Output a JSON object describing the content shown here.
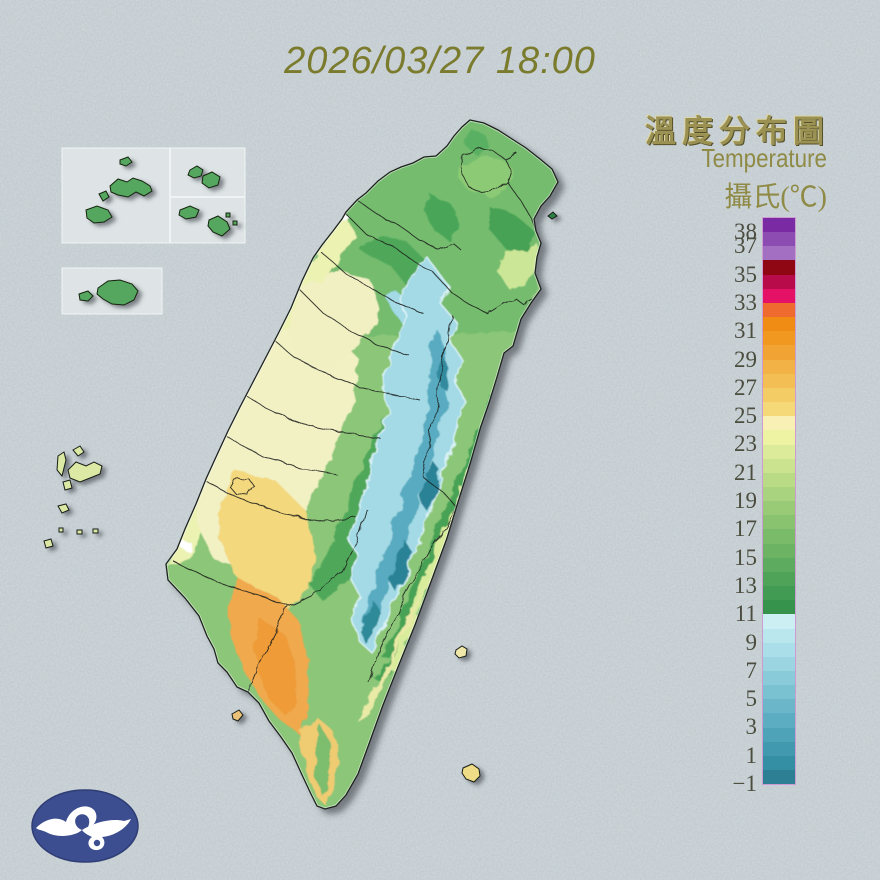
{
  "title": {
    "datetime": "2026/03/27 18:00"
  },
  "legend": {
    "title_zh": "溫度分布圖",
    "title_en": "Temperature",
    "unit_label": "攝氏(℃)",
    "ticks": [
      {
        "label": "38",
        "pos": 1
      },
      {
        "label": "37",
        "pos": 2
      },
      {
        "label": "35",
        "pos": 4
      },
      {
        "label": "33",
        "pos": 6
      },
      {
        "label": "31",
        "pos": 8
      },
      {
        "label": "29",
        "pos": 10
      },
      {
        "label": "27",
        "pos": 12
      },
      {
        "label": "25",
        "pos": 14
      },
      {
        "label": "23",
        "pos": 16
      },
      {
        "label": "21",
        "pos": 18
      },
      {
        "label": "19",
        "pos": 20
      },
      {
        "label": "17",
        "pos": 22
      },
      {
        "label": "15",
        "pos": 24
      },
      {
        "label": "13",
        "pos": 26
      },
      {
        "label": "11",
        "pos": 28
      },
      {
        "label": "9",
        "pos": 30
      },
      {
        "label": "7",
        "pos": 32
      },
      {
        "label": "5",
        "pos": 34
      },
      {
        "label": "3",
        "pos": 36
      },
      {
        "label": "1",
        "pos": 38
      },
      {
        "label": "−1",
        "pos": 40
      }
    ]
  },
  "map_semantics": {
    "main_island": "taiwan",
    "insets": [
      "kinmen-islands",
      "matsu-north-islands",
      "matsu-south-islands",
      "offshore-islet-group"
    ],
    "offshore_islands": [
      "penghu-archipelago",
      "guishan-island",
      "green-island",
      "orchid-island",
      "xiaoliuqiu"
    ]
  },
  "logo": {
    "name": "central-weather-administration-logo",
    "color": "#3c4d90"
  },
  "chart_data": {
    "type": "heatmap",
    "title_zh": "溫度分布圖",
    "title_en": "Temperature",
    "unit": "攝氏(℃)",
    "datetime": "2026/03/27 18:00",
    "legend_position": "right",
    "scale": {
      "top_value": 39,
      "bottom_value": -1,
      "step": 1,
      "tick_values": [
        38,
        37,
        35,
        33,
        31,
        29,
        27,
        25,
        23,
        21,
        19,
        17,
        15,
        13,
        11,
        9,
        7,
        5,
        3,
        1,
        -1
      ],
      "colors_top_to_bottom": [
        "#7a2aa2",
        "#8d4cb2",
        "#a36fc2",
        "#8e0712",
        "#b80b49",
        "#e51166",
        "#ef6a2e",
        "#f08c13",
        "#f0981f",
        "#f1a433",
        "#f2b246",
        "#f3bf55",
        "#f4cc66",
        "#f5d878",
        "#f8f0b5",
        "#edf3a3",
        "#dceb99",
        "#cbe38f",
        "#badb86",
        "#a9d37e",
        "#99cb77",
        "#8ac370",
        "#7abb6a",
        "#6cb364",
        "#5dab5e",
        "#4fa358",
        "#429b52",
        "#35934c",
        "#cbeff3",
        "#bae7ee",
        "#aadee8",
        "#9ad5e1",
        "#8acbd9",
        "#7ac1d1",
        "#6bb7c9",
        "#5cadc1",
        "#4ea3b8",
        "#4099ae",
        "#358fa4",
        "#2d8094"
      ]
    },
    "observed_regions": [
      {
        "area": "west coastal plains",
        "approx_temp_c": "23–25"
      },
      {
        "area": "southwest plain (Tainan–Kaohsiung–Pingtung)",
        "approx_temp_c": "27–31"
      },
      {
        "area": "north and northeast Taiwan",
        "approx_temp_c": "17–21"
      },
      {
        "area": "central mountain range ridge",
        "approx_temp_c": "-1–11"
      },
      {
        "area": "east rift valley and southeast coast",
        "approx_temp_c": "21–25"
      },
      {
        "area": "offshore islands (Penghu, Kinmen, Matsu)",
        "approx_temp_c": "17–24"
      }
    ]
  }
}
